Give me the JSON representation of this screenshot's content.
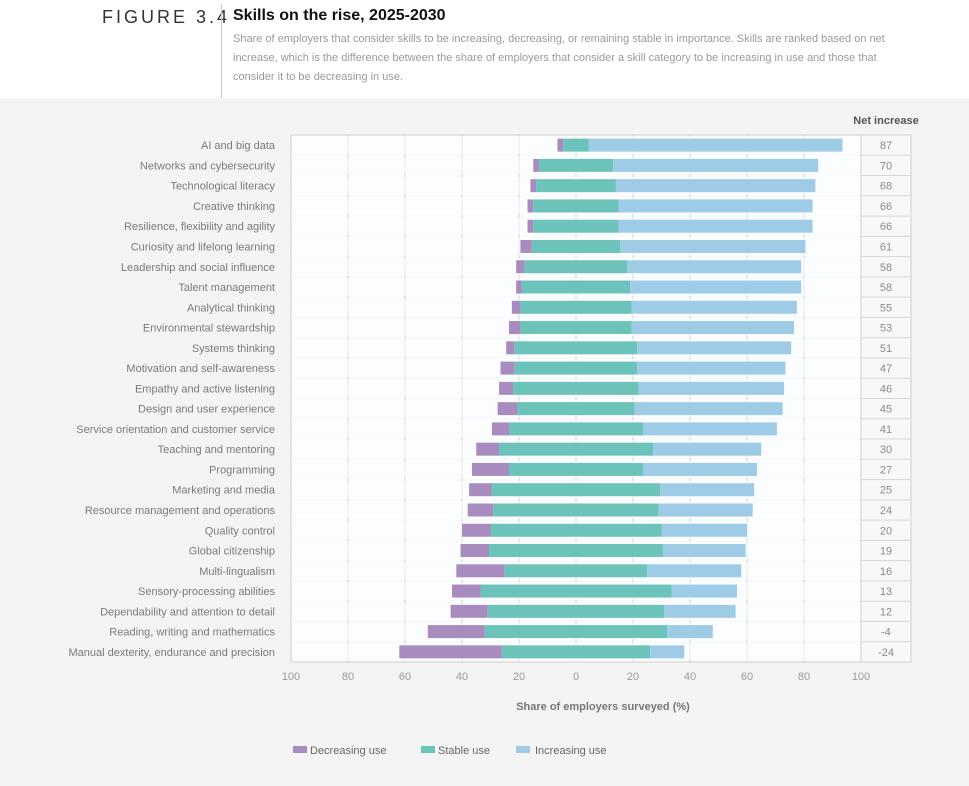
{
  "figure": {
    "label": "FIGURE 3.4",
    "title": "Skills on the rise, 2025-2030",
    "description": "Share of employers that consider skills to be increasing, decreasing, or remaining stable in importance. Skills are ranked based on net increase, which is the difference between the share of employers that consider a skill category to be increasing in use and those that consider it to be decreasing in use."
  },
  "colors": {
    "decreasing": "#a98cbf",
    "stable": "#6cc3b9",
    "increasing": "#9ecbe6",
    "plot_bg": "#f8fbfc",
    "grid": "#cfcfcf"
  },
  "chart_data": {
    "type": "bar",
    "orientation": "horizontal-diverging-stacked",
    "title": "Skills on the rise, 2025-2030",
    "xlabel": "Share of employers surveyed (%)",
    "ylabel": "",
    "xlim": [
      -100,
      100
    ],
    "x_ticks": [
      -100,
      -80,
      -60,
      -40,
      -20,
      0,
      20,
      40,
      60,
      80,
      100
    ],
    "x_tick_labels": [
      "100",
      "80",
      "60",
      "40",
      "20",
      "0",
      "20",
      "40",
      "60",
      "80",
      "100"
    ],
    "grid": true,
    "net_column_title": "Net increase",
    "legend_position": "bottom-left",
    "legend": [
      "Decreasing use",
      "Stable use",
      "Increasing use"
    ],
    "categories": [
      "AI and big data",
      "Networks and cybersecurity",
      "Technological literacy",
      "Creative thinking",
      "Resilience, flexibility and agility",
      "Curiosity and lifelong learning",
      "Leadership and social influence",
      "Talent management",
      "Analytical thinking",
      "Environmental stewardship",
      "Systems thinking",
      "Motivation and self-awareness",
      "Empathy and active listening",
      "Design and user experience",
      "Service orientation and customer service",
      "Teaching and mentoring",
      "Programming",
      "Marketing and media",
      "Resource management and operations",
      "Quality control",
      "Global citizenship",
      "Multi-lingualism",
      "Sensory-processing abilities",
      "Dependability and attention to detail",
      "Reading, writing and mathematics",
      "Manual dexterity, endurance and precision"
    ],
    "series": [
      {
        "name": "Decreasing use",
        "values": [
          2,
          2,
          2,
          2,
          2,
          4,
          3,
          2,
          3,
          4,
          3,
          5,
          5,
          7,
          6,
          8,
          13,
          8,
          9,
          10,
          10,
          17,
          10,
          13,
          20,
          36
        ]
      },
      {
        "name": "Stable use",
        "values": [
          9,
          26,
          28,
          30,
          30,
          31,
          36,
          38,
          39,
          39,
          43,
          43,
          44,
          41,
          47,
          54,
          47,
          59,
          58,
          60,
          61,
          50,
          67,
          62,
          64,
          52
        ]
      },
      {
        "name": "Increasing use",
        "values": [
          89,
          72,
          70,
          68,
          68,
          65,
          61,
          60,
          58,
          57,
          54,
          52,
          51,
          52,
          47,
          38,
          40,
          33,
          33,
          30,
          29,
          33,
          23,
          25,
          16,
          12
        ]
      }
    ],
    "net_increase": [
      87,
      70,
      68,
      66,
      66,
      61,
      58,
      58,
      55,
      53,
      51,
      47,
      46,
      45,
      41,
      30,
      27,
      25,
      24,
      20,
      19,
      16,
      13,
      12,
      -4,
      -24
    ]
  }
}
